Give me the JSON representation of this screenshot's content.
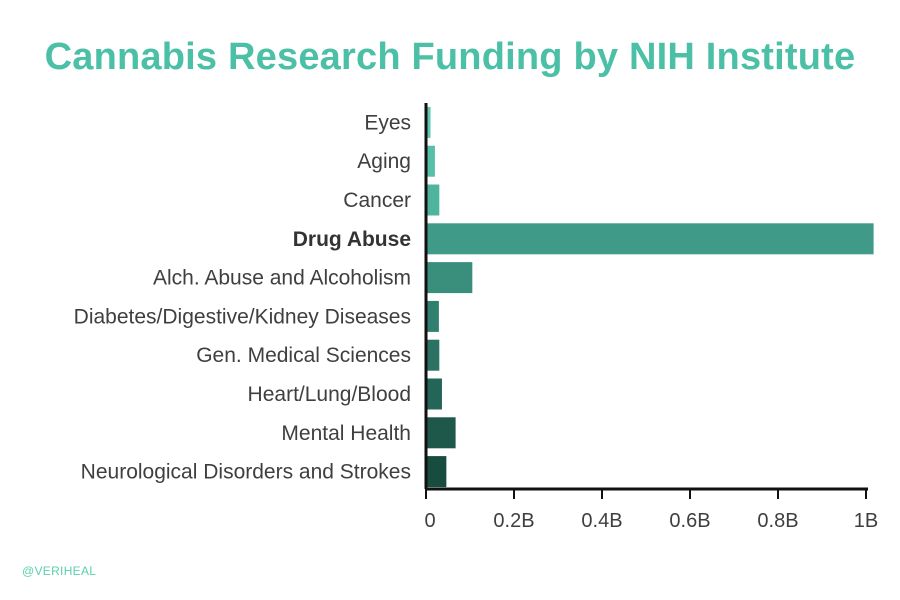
{
  "header": {
    "title": "Cannabis Research Funding by NIH Institute"
  },
  "footer": {
    "watermark": "@VERIHEAL"
  },
  "chart_data": {
    "type": "bar",
    "orientation": "horizontal",
    "title": "Cannabis Research Funding by NIH Institute",
    "xlabel": "",
    "ylabel": "",
    "xlim": [
      0,
      1000000000
    ],
    "grid": false,
    "legend": "none",
    "categories": [
      "Eyes",
      "Aging",
      "Cancer",
      "Drug Abuse",
      "Alch. Abuse and Alcoholism",
      "Diabetes/Digestive/Kidney Diseases",
      "Gen. Medical Sciences",
      "Heart/Lung/Blood",
      "Mental Health",
      "Neurological Disorders and Strokes"
    ],
    "highlighted_category": "Drug Abuse",
    "values": [
      8000000,
      18000000,
      28000000,
      1015000000,
      103000000,
      27000000,
      28000000,
      34000000,
      65000000,
      44000000
    ],
    "colors": [
      "#5ec9b0",
      "#57c0a7",
      "#4fb49d",
      "#3f9b88",
      "#3a8f7c",
      "#317f6e",
      "#2b7262",
      "#236556",
      "#1d584a",
      "#174c3f"
    ],
    "ticks": [
      0,
      200000000,
      400000000,
      600000000,
      800000000,
      1000000000
    ],
    "tick_labels": [
      "0",
      "0.2B",
      "0.4B",
      "0.6B",
      "0.8B",
      "1B"
    ]
  }
}
